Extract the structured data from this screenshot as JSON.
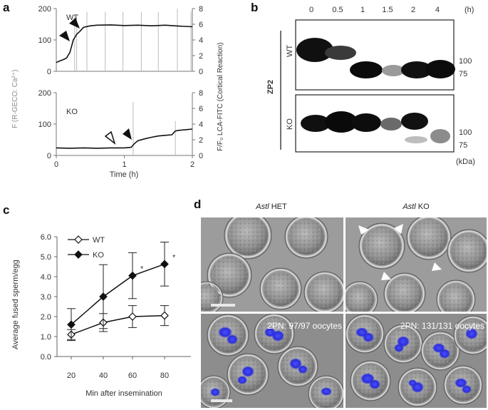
{
  "panel_a": {
    "letter": "a",
    "left_axis_label": "F (R-GECO: Ca²⁺)",
    "right_axis_label": "F/F₀ LCA-FITC (Cortical Reaction)",
    "xlabel": "Time (h)",
    "x_ticks": [
      "0",
      "1",
      "2"
    ],
    "left_ticks_top": [
      "0",
      "100",
      "200"
    ],
    "right_ticks_top": [
      "0",
      "2",
      "4",
      "6",
      "8"
    ],
    "left_ticks_bottom": [
      "0",
      "100",
      "200"
    ],
    "right_ticks_bottom": [
      "0",
      "2",
      "4",
      "6",
      "8"
    ],
    "wt_label": "WT",
    "ko_label": "KO"
  },
  "panel_b": {
    "letter": "b",
    "time_labels": [
      "0",
      "0.5",
      "1",
      "1.5",
      "2",
      "4"
    ],
    "time_unit": "(h)",
    "protein": "ZP2",
    "wt_label": "WT",
    "ko_label": "KO",
    "mw_wt": [
      "100",
      "75"
    ],
    "mw_ko": [
      "100",
      "75"
    ],
    "unit": "(kDa)"
  },
  "panel_c": {
    "letter": "c",
    "ylabel": "Average fused sperm/egg",
    "xlabel": "Min after insemination",
    "y_ticks": [
      "0.0",
      "1.0",
      "2.0",
      "3.0",
      "4.0",
      "5.0",
      "6.0"
    ],
    "x_ticks": [
      "20",
      "40",
      "60",
      "80"
    ],
    "sig_mark": "*"
  },
  "panel_d": {
    "letter": "d",
    "col1_gene": "Astl",
    "col1_rest": " HET",
    "col2_gene": "Astl",
    "col2_rest": " KO",
    "label_het": "2PN: 97/97 oocytes",
    "label_ko": "2PN: 131/131 oocytes"
  },
  "chart_data": [
    {
      "type": "line",
      "title": "",
      "panel": "a (WT)",
      "xlabel": "Time (h)",
      "ylabel": "F (R-GECO: Ca²⁺)",
      "y2label": "F/F₀ LCA-FITC (Cortical Reaction)",
      "xlim": [
        0,
        2
      ],
      "ylim": [
        0,
        200
      ],
      "y2lim": [
        0,
        8
      ],
      "series": [
        {
          "x": [
            0.0,
            0.05,
            0.1,
            0.15,
            0.2,
            0.25,
            0.3,
            0.35,
            0.4,
            0.5,
            0.6,
            0.8,
            1.0,
            1.2,
            1.4,
            1.6,
            1.8,
            2.0
          ],
          "y": [
            28,
            33,
            37,
            42,
            60,
            100,
            118,
            128,
            140,
            145,
            147,
            148,
            146,
            147,
            145,
            147,
            144,
            142
          ]
        }
      ]
    },
    {
      "type": "line",
      "title": "",
      "panel": "a (KO)",
      "xlabel": "Time (h)",
      "ylabel": "F (R-GECO: Ca²⁺)",
      "y2label": "F/F₀ LCA-FITC (Cortical Reaction)",
      "xlim": [
        0,
        2
      ],
      "ylim": [
        0,
        200
      ],
      "y2lim": [
        0,
        8
      ],
      "series": [
        {
          "x": [
            0.0,
            0.2,
            0.4,
            0.6,
            0.8,
            1.0,
            1.1,
            1.15,
            1.2,
            1.3,
            1.4,
            1.5,
            1.6,
            1.7,
            1.75,
            1.8,
            1.9,
            2.0
          ],
          "y": [
            24,
            23,
            24,
            23,
            24,
            24,
            26,
            38,
            47,
            53,
            58,
            62,
            64,
            66,
            78,
            80,
            82,
            84
          ]
        }
      ]
    },
    {
      "type": "line",
      "title": "",
      "panel": "c",
      "xlabel": "Min after insemination",
      "ylabel": "Average fused sperm/egg",
      "ylim": [
        0,
        6
      ],
      "x": [
        20,
        40,
        60,
        80
      ],
      "series": [
        {
          "name": "WT",
          "values": [
            1.1,
            1.7,
            2.0,
            2.05
          ],
          "error": [
            0.25,
            0.45,
            0.55,
            0.5
          ]
        },
        {
          "name": "KO",
          "values": [
            1.6,
            3.0,
            4.05,
            4.63
          ],
          "error": [
            0.8,
            1.6,
            1.15,
            1.1
          ]
        }
      ],
      "significant_at": [
        60,
        80
      ]
    }
  ]
}
